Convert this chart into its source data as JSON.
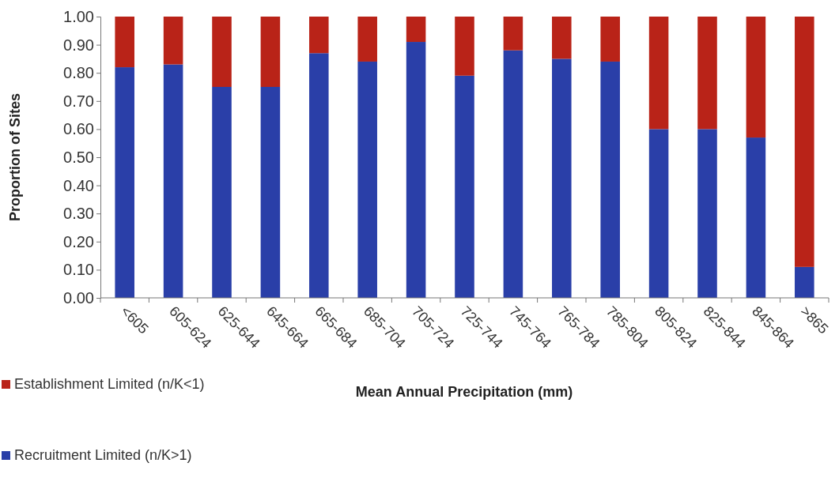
{
  "chart_data": {
    "type": "bar",
    "stacked": true,
    "xlabel": "Mean Annual Precipitation (mm)",
    "ylabel": "Proportion of Sites",
    "categories": [
      "<605",
      "605-624",
      "625-644",
      "645-664",
      "665-684",
      "685-704",
      "705-724",
      "725-744",
      "745-764",
      "765-784",
      "785-804",
      "805-824",
      "825-844",
      "845-864",
      ">865"
    ],
    "series": [
      {
        "name": "Recruitment Limited (n/K>1)",
        "color": "#2a3fa8",
        "values": [
          0.82,
          0.83,
          0.75,
          0.75,
          0.87,
          0.84,
          0.91,
          0.79,
          0.88,
          0.85,
          0.84,
          0.6,
          0.6,
          0.57,
          0.11
        ]
      },
      {
        "name": "Establishment Limited (n/K<1)",
        "color": "#b92318",
        "values": [
          0.18,
          0.17,
          0.25,
          0.25,
          0.13,
          0.16,
          0.09,
          0.21,
          0.12,
          0.15,
          0.16,
          0.4,
          0.4,
          0.43,
          0.89
        ]
      }
    ],
    "ylim": [
      0,
      1
    ],
    "yticks": [
      {
        "value": 0,
        "label": "0.00"
      },
      {
        "value": 0.1,
        "label": "0.10"
      },
      {
        "value": 0.2,
        "label": "0.20"
      },
      {
        "value": 0.3,
        "label": "0.30"
      },
      {
        "value": 0.4,
        "label": "0.40"
      },
      {
        "value": 0.5,
        "label": "0.50"
      },
      {
        "value": 0.6,
        "label": "0.60"
      },
      {
        "value": 0.7,
        "label": "0.70"
      },
      {
        "value": 0.8,
        "label": "0.80"
      },
      {
        "value": 0.9,
        "label": "0.90"
      },
      {
        "value": 1,
        "label": "1.00"
      }
    ],
    "grid": false,
    "legend": "bottom left"
  }
}
